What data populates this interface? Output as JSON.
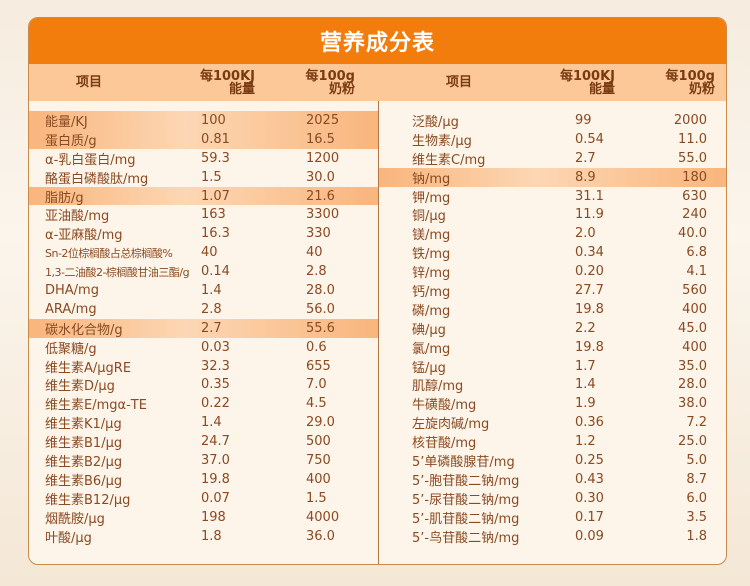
{
  "title": "营养成分表",
  "colors": {
    "title_bar": "#f27d0c",
    "header_row": "#fcc897",
    "body_bg": "#fef5ea",
    "highlight_row": "#f9b57c",
    "text": "#8a4a22",
    "header_text": "#7a3a12"
  },
  "headers": {
    "item": "项目",
    "per100kj_line1": "每100KJ",
    "per100kj_line2": "能量",
    "per100g_line1": "每100g",
    "per100g_line2": "奶粉"
  },
  "left_rows": [
    {
      "name": "能量/KJ",
      "per100kj": "100",
      "per100g": "2025",
      "highlight": true
    },
    {
      "name": "蛋白质/g",
      "per100kj": "0.81",
      "per100g": "16.5",
      "highlight": true
    },
    {
      "name": "α-乳白蛋白/mg",
      "per100kj": "59.3",
      "per100g": "1200",
      "highlight": false
    },
    {
      "name": "酪蛋白磷酸肽/mg",
      "per100kj": "1.5",
      "per100g": "30.0",
      "highlight": false
    },
    {
      "name": "脂肪/g",
      "per100kj": "1.07",
      "per100g": "21.6",
      "highlight": true
    },
    {
      "name": "亚油酸/mg",
      "per100kj": "163",
      "per100g": "3300",
      "highlight": false
    },
    {
      "name": "α-亚麻酸/mg",
      "per100kj": "16.3",
      "per100g": "330",
      "highlight": false
    },
    {
      "name": "Sn-2位棕榈酸占总棕榈酸%",
      "per100kj": "40",
      "per100g": "40",
      "highlight": false,
      "small": true
    },
    {
      "name": "1,3-二油酸2-棕榈酸甘油三酯/g",
      "per100kj": "0.14",
      "per100g": "2.8",
      "highlight": false,
      "small": true
    },
    {
      "name": "DHA/mg",
      "per100kj": "1.4",
      "per100g": "28.0",
      "highlight": false
    },
    {
      "name": "ARA/mg",
      "per100kj": "2.8",
      "per100g": "56.0",
      "highlight": false
    },
    {
      "name": "碳水化合物/g",
      "per100kj": "2.7",
      "per100g": "55.6",
      "highlight": true
    },
    {
      "name": "低聚糖/g",
      "per100kj": "0.03",
      "per100g": "0.6",
      "highlight": false
    },
    {
      "name": "维生素A/μgRE",
      "per100kj": "32.3",
      "per100g": "655",
      "highlight": false
    },
    {
      "name": "维生素D/μg",
      "per100kj": "0.35",
      "per100g": "7.0",
      "highlight": false
    },
    {
      "name": "维生素E/mgα-TE",
      "per100kj": "0.22",
      "per100g": "4.5",
      "highlight": false
    },
    {
      "name": "维生素K1/μg",
      "per100kj": "1.4",
      "per100g": "29.0",
      "highlight": false
    },
    {
      "name": "维生素B1/μg",
      "per100kj": "24.7",
      "per100g": "500",
      "highlight": false
    },
    {
      "name": "维生素B2/μg",
      "per100kj": "37.0",
      "per100g": "750",
      "highlight": false
    },
    {
      "name": "维生素B6/μg",
      "per100kj": "19.8",
      "per100g": "400",
      "highlight": false
    },
    {
      "name": "维生素B12/μg",
      "per100kj": "0.07",
      "per100g": "1.5",
      "highlight": false
    },
    {
      "name": "烟酰胺/μg",
      "per100kj": "198",
      "per100g": "4000",
      "highlight": false
    },
    {
      "name": "叶酸/μg",
      "per100kj": "1.8",
      "per100g": "36.0",
      "highlight": false
    }
  ],
  "right_rows": [
    {
      "name": "泛酸/μg",
      "per100kj": "99",
      "per100g": "2000",
      "highlight": false
    },
    {
      "name": "生物素/μg",
      "per100kj": "0.54",
      "per100g": "11.0",
      "highlight": false
    },
    {
      "name": "维生素C/mg",
      "per100kj": "2.7",
      "per100g": "55.0",
      "highlight": false
    },
    {
      "name": "钠/mg",
      "per100kj": "8.9",
      "per100g": "180",
      "highlight": true
    },
    {
      "name": "钾/mg",
      "per100kj": "31.1",
      "per100g": "630",
      "highlight": false
    },
    {
      "name": "铜/μg",
      "per100kj": "11.9",
      "per100g": "240",
      "highlight": false
    },
    {
      "name": "镁/mg",
      "per100kj": "2.0",
      "per100g": "40.0",
      "highlight": false
    },
    {
      "name": "铁/mg",
      "per100kj": "0.34",
      "per100g": "6.8",
      "highlight": false
    },
    {
      "name": "锌/mg",
      "per100kj": "0.20",
      "per100g": "4.1",
      "highlight": false
    },
    {
      "name": "钙/mg",
      "per100kj": "27.7",
      "per100g": "560",
      "highlight": false
    },
    {
      "name": "磷/mg",
      "per100kj": "19.8",
      "per100g": "400",
      "highlight": false
    },
    {
      "name": "碘/μg",
      "per100kj": "2.2",
      "per100g": "45.0",
      "highlight": false
    },
    {
      "name": "氯/mg",
      "per100kj": "19.8",
      "per100g": "400",
      "highlight": false
    },
    {
      "name": "锰/μg",
      "per100kj": "1.7",
      "per100g": "35.0",
      "highlight": false
    },
    {
      "name": "肌醇/mg",
      "per100kj": "1.4",
      "per100g": "28.0",
      "highlight": false
    },
    {
      "name": "牛磺酸/mg",
      "per100kj": "1.9",
      "per100g": "38.0",
      "highlight": false
    },
    {
      "name": "左旋肉碱/mg",
      "per100kj": "0.36",
      "per100g": "7.2",
      "highlight": false
    },
    {
      "name": "核苷酸/mg",
      "per100kj": "1.2",
      "per100g": "25.0",
      "highlight": false
    },
    {
      "name": "5’单磷酸腺苷/mg",
      "per100kj": "0.25",
      "per100g": "5.0",
      "highlight": false
    },
    {
      "name": "5’-胞苷酸二钠/mg",
      "per100kj": "0.43",
      "per100g": "8.7",
      "highlight": false
    },
    {
      "name": "5’-尿苷酸二钠/mg",
      "per100kj": "0.30",
      "per100g": "6.0",
      "highlight": false
    },
    {
      "name": "5’-肌苷酸二钠/mg",
      "per100kj": "0.17",
      "per100g": "3.5",
      "highlight": false
    },
    {
      "name": "5’-鸟苷酸二钠/mg",
      "per100kj": "0.09",
      "per100g": "1.8",
      "highlight": false
    }
  ]
}
